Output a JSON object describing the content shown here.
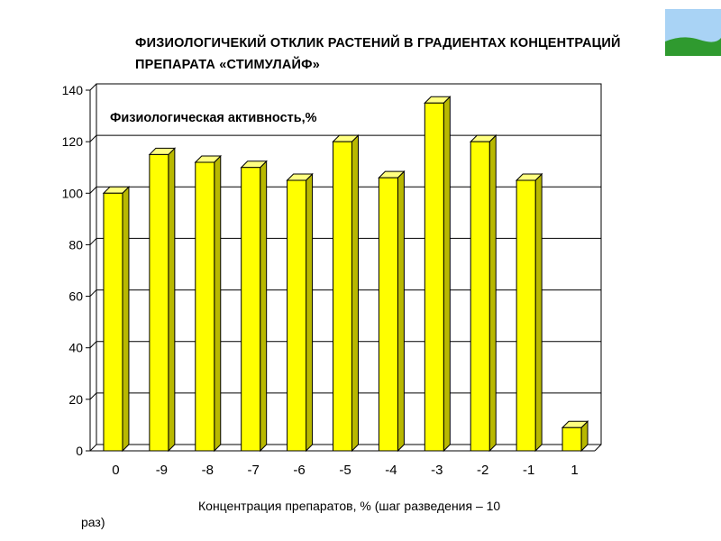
{
  "slide": {
    "title_line1": "ФИЗИОЛОГИЧЕКИЙ  ОТКЛИК РАСТЕНИЙ В ГРАДИЕНТАХ КОНЦЕНТРАЦИЙ",
    "title_line2": "ПРЕПАРАТА «СТИМУЛАЙФ»"
  },
  "colors": {
    "bar_front": "#ffff00",
    "bar_side": "#b8b800",
    "bar_top": "#ffff80",
    "bar_edge": "#000000",
    "grid": "#000000",
    "sky": "#a9d3f5",
    "grass": "#2f9a2f"
  },
  "chart_data": {
    "type": "bar",
    "title": "Физиологическая активность,%",
    "xlabel": "Концентрация  препаратов, % (шаг разведения – 10",
    "xlabel_tail": "раз)",
    "ylabel": "",
    "categories": [
      "0",
      "-9",
      "-8",
      "-7",
      "-6",
      "-5",
      "-4",
      "-3",
      "-2",
      "-1",
      "1"
    ],
    "values": [
      100,
      115,
      112,
      110,
      105,
      120,
      106,
      135,
      120,
      105,
      9
    ],
    "ylim": [
      0,
      140
    ],
    "yticks": [
      0,
      20,
      40,
      60,
      80,
      100,
      120,
      140
    ],
    "grid": true,
    "legend": "none",
    "style": "3d-columns"
  }
}
